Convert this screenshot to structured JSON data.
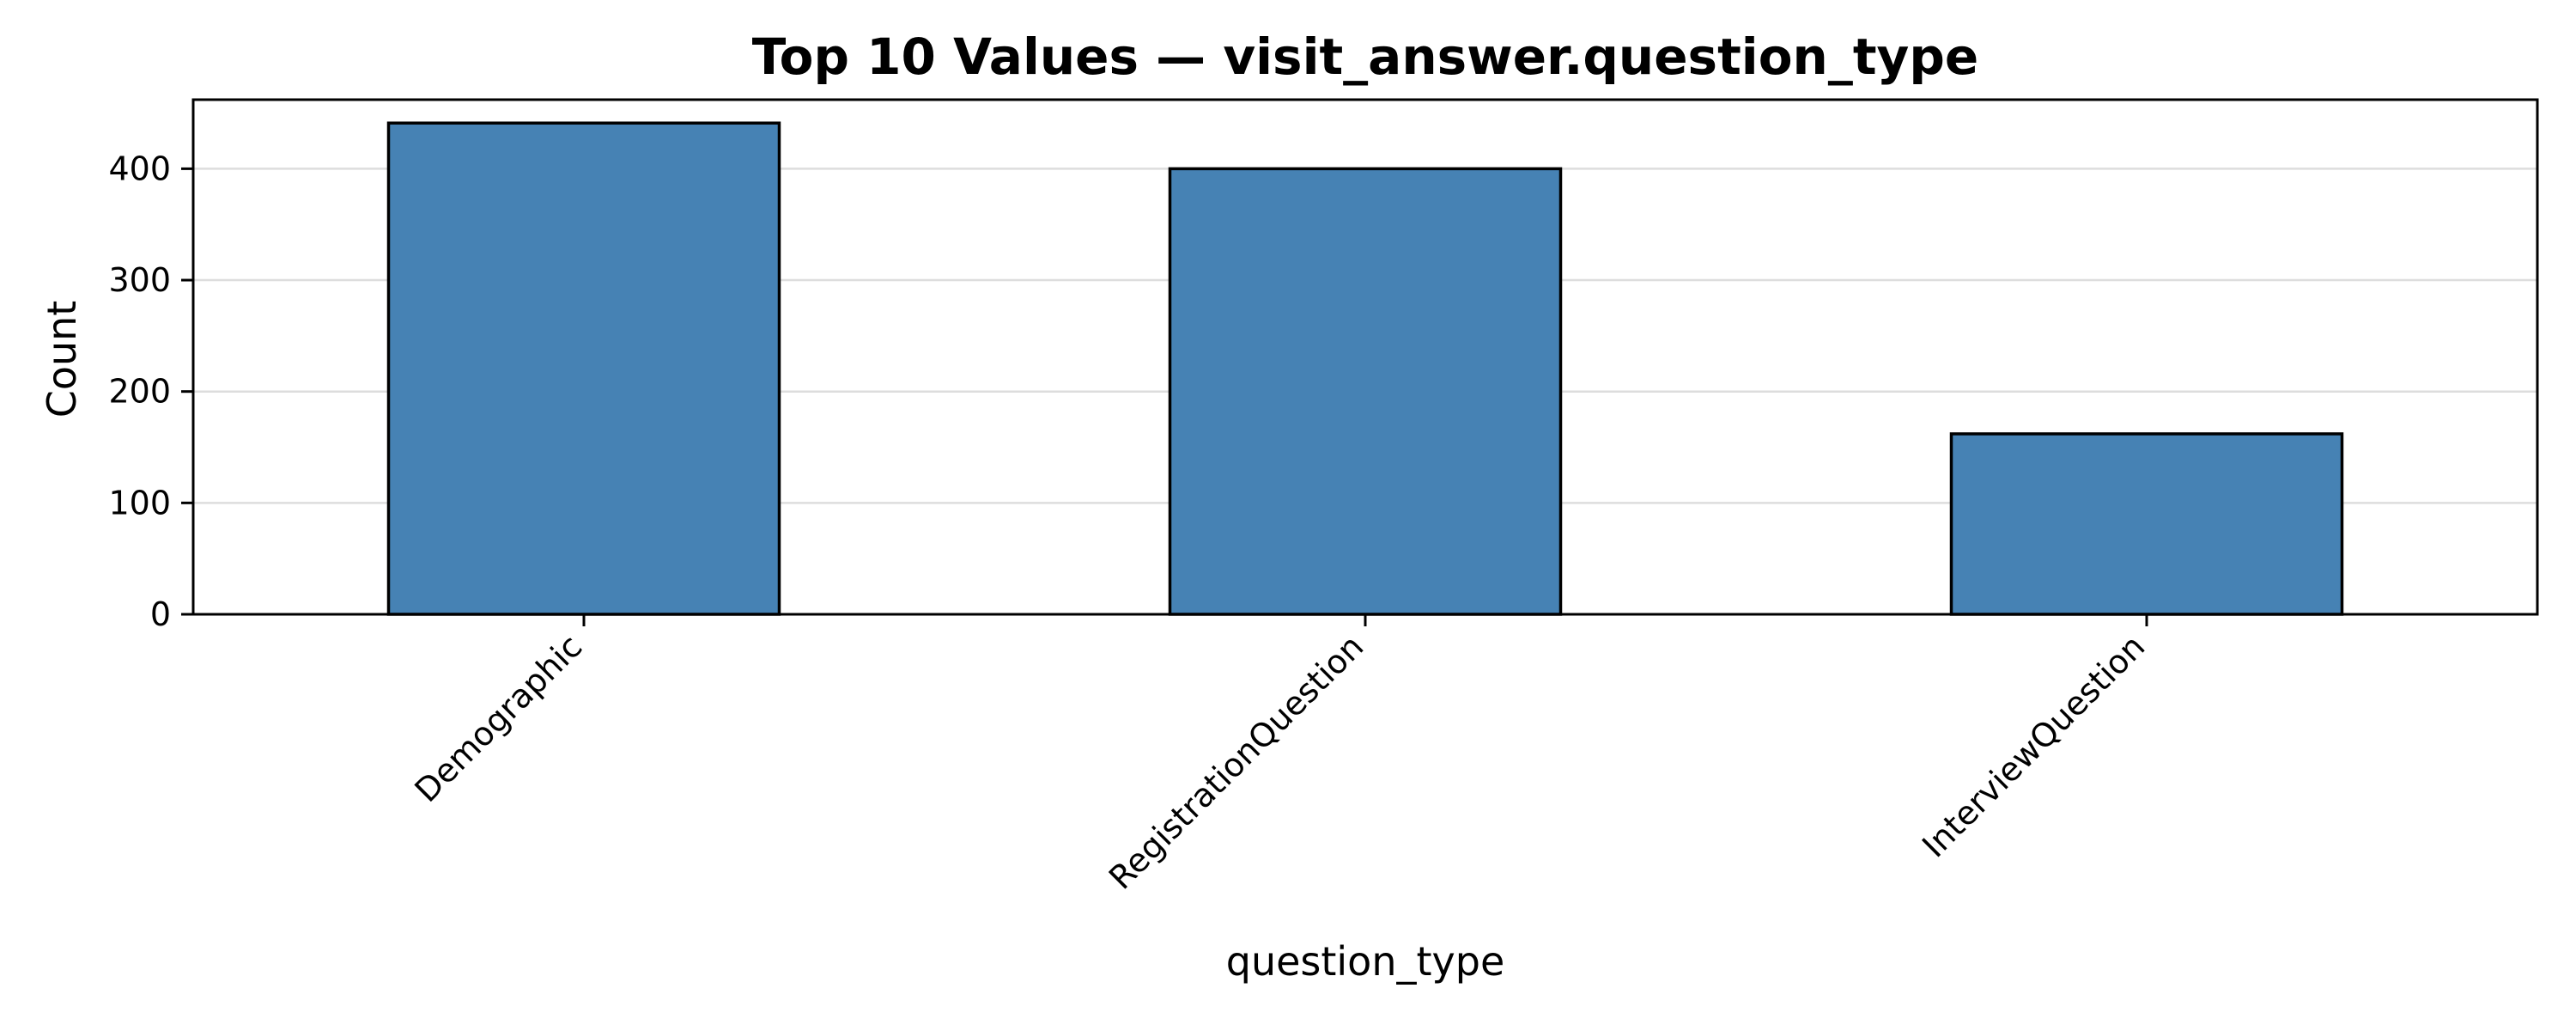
{
  "chart_data": {
    "type": "bar",
    "title": "Top 10 Values — visit_answer.question_type",
    "xlabel": "question_type",
    "ylabel": "Count",
    "categories": [
      "Demographic",
      "RegistrationQuestion",
      "InterviewQuestion"
    ],
    "values": [
      441,
      400,
      162
    ],
    "ylim": [
      0,
      462
    ],
    "yticks": [
      0,
      100,
      200,
      300,
      400
    ],
    "grid": "y",
    "legend": "none",
    "colors": {
      "bar_fill": "#4682b4",
      "bar_edge": "#000000",
      "grid": "#dddddd",
      "axes": "#000000"
    }
  }
}
